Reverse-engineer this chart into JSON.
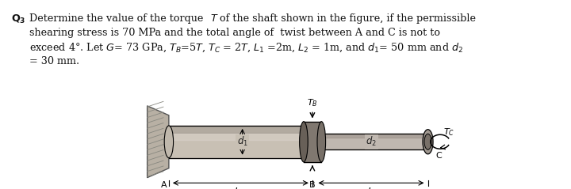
{
  "bg_color": "#ffffff",
  "fig_bg": "#ccc8c0",
  "text_color": "#111111",
  "shaft1_color_main": "#c8c0b4",
  "shaft1_color_dark": "#a09890",
  "shaft1_color_light": "#e0d8d0",
  "shaft2_color_main": "#c0b8b0",
  "shaft2_color_dark": "#988e86",
  "collar_color": "#807870",
  "wall_color": "#b0a898",
  "wall_edge": "#666666",
  "line1": "Q₃ Determine the value of the torque T of the shaft shown in the figure, if the permissible",
  "line2": "shearing stress is 70 MPa and the total angle of  twist between A and C is not to",
  "line3": "exceed 4°. Let G= 73 GPa, Tᴮ=5T, Tᴄ = 2T, L₁ =2m, L₂ = 1m, and d₁= 50 mm and d₂",
  "line4": "= 30 mm.",
  "fontsize": 9.2
}
